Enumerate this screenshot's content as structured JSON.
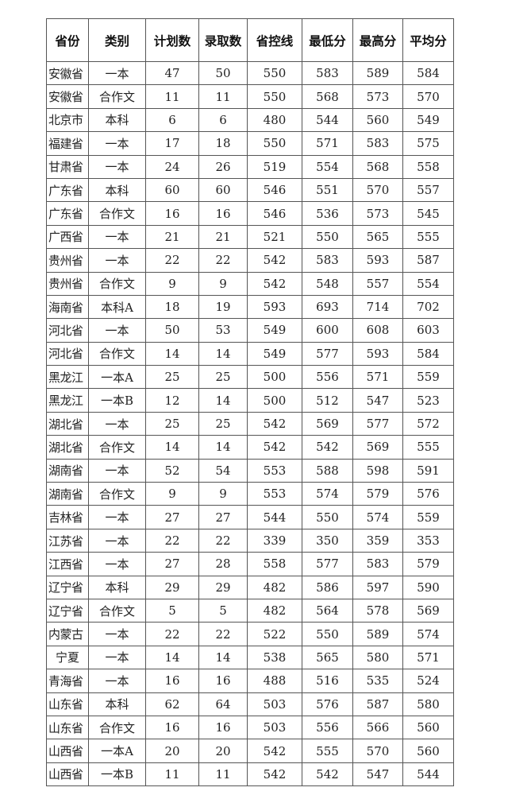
{
  "headers": [
    "省份",
    "类别",
    "计划数",
    "录取数",
    "省控线",
    "最低分",
    "最高分",
    "平均分"
  ],
  "rows": [
    [
      "安徽省",
      "一本",
      "47",
      "50",
      "550",
      "583",
      "589",
      "584"
    ],
    [
      "安徽省",
      "合作文",
      "11",
      "11",
      "550",
      "568",
      "573",
      "570"
    ],
    [
      "北京市",
      "本科",
      "6",
      "6",
      "480",
      "544",
      "560",
      "549"
    ],
    [
      "福建省",
      "一本",
      "17",
      "18",
      "550",
      "571",
      "583",
      "575"
    ],
    [
      "甘肃省",
      "一本",
      "24",
      "26",
      "519",
      "554",
      "568",
      "558"
    ],
    [
      "广东省",
      "本科",
      "60",
      "60",
      "546",
      "551",
      "570",
      "557"
    ],
    [
      "广东省",
      "合作文",
      "16",
      "16",
      "546",
      "536",
      "573",
      "545"
    ],
    [
      "广西省",
      "一本",
      "21",
      "21",
      "521",
      "550",
      "565",
      "555"
    ],
    [
      "贵州省",
      "一本",
      "22",
      "22",
      "542",
      "583",
      "593",
      "587"
    ],
    [
      "贵州省",
      "合作文",
      "9",
      "9",
      "542",
      "548",
      "557",
      "554"
    ],
    [
      "海南省",
      "本科A",
      "18",
      "19",
      "593",
      "693",
      "714",
      "702"
    ],
    [
      "河北省",
      "一本",
      "50",
      "53",
      "549",
      "600",
      "608",
      "603"
    ],
    [
      "河北省",
      "合作文",
      "14",
      "14",
      "549",
      "577",
      "593",
      "584"
    ],
    [
      "黑龙江",
      "一本A",
      "25",
      "25",
      "500",
      "556",
      "571",
      "559"
    ],
    [
      "黑龙江",
      "一本B",
      "12",
      "14",
      "500",
      "512",
      "547",
      "523"
    ],
    [
      "湖北省",
      "一本",
      "25",
      "25",
      "542",
      "569",
      "577",
      "572"
    ],
    [
      "湖北省",
      "合作文",
      "14",
      "14",
      "542",
      "542",
      "569",
      "555"
    ],
    [
      "湖南省",
      "一本",
      "52",
      "54",
      "553",
      "588",
      "598",
      "591"
    ],
    [
      "湖南省",
      "合作文",
      "9",
      "9",
      "553",
      "574",
      "579",
      "576"
    ],
    [
      "吉林省",
      "一本",
      "27",
      "27",
      "544",
      "550",
      "574",
      "559"
    ],
    [
      "江苏省",
      "一本",
      "22",
      "22",
      "339",
      "350",
      "359",
      "353"
    ],
    [
      "江西省",
      "一本",
      "27",
      "28",
      "558",
      "577",
      "583",
      "579"
    ],
    [
      "辽宁省",
      "本科",
      "29",
      "29",
      "482",
      "586",
      "597",
      "590"
    ],
    [
      "辽宁省",
      "合作文",
      "5",
      "5",
      "482",
      "564",
      "578",
      "569"
    ],
    [
      "内蒙古",
      "一本",
      "22",
      "22",
      "522",
      "550",
      "589",
      "574"
    ],
    [
      "宁夏",
      "一本",
      "14",
      "14",
      "538",
      "565",
      "580",
      "571"
    ],
    [
      "青海省",
      "一本",
      "16",
      "16",
      "488",
      "516",
      "535",
      "524"
    ],
    [
      "山东省",
      "本科",
      "62",
      "64",
      "503",
      "576",
      "587",
      "580"
    ],
    [
      "山东省",
      "合作文",
      "16",
      "16",
      "503",
      "556",
      "566",
      "560"
    ],
    [
      "山西省",
      "一本A",
      "20",
      "20",
      "542",
      "555",
      "570",
      "560"
    ],
    [
      "山西省",
      "一本B",
      "11",
      "11",
      "542",
      "542",
      "547",
      "544"
    ]
  ]
}
